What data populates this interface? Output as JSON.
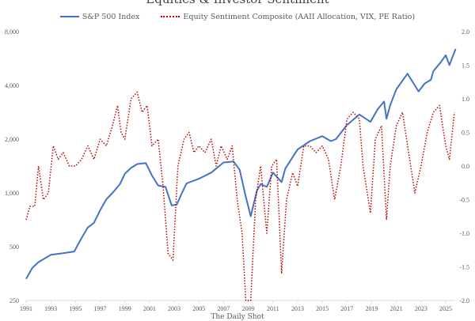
{
  "chart_data": {
    "type": "line",
    "title": "Equities & Investor Sentiment",
    "source": "The Daily Shot",
    "left_axis": {
      "scale": "log",
      "ylim": [
        250,
        8000
      ],
      "ticks": [
        250,
        500,
        1000,
        2000,
        4000,
        8000
      ],
      "tick_labels": [
        "250",
        "500",
        "1,000",
        "2,000",
        "4,000",
        "8,000"
      ]
    },
    "right_axis": {
      "ylim": [
        -2.0,
        2.0
      ],
      "ticks": [
        -2.0,
        -1.5,
        -1.0,
        -0.5,
        0.0,
        0.5,
        1.0,
        1.5,
        2.0
      ],
      "tick_labels": [
        "-2.0",
        "-1.5",
        "-1.0",
        "-0.5",
        "0.0",
        "0.5",
        "1.0",
        "1.5",
        "2.0"
      ]
    },
    "x_axis": {
      "xlim": [
        1991,
        2025.9
      ],
      "ticks": [
        1991,
        1993,
        1995,
        1997,
        1999,
        2001,
        2003,
        2005,
        2007,
        2009,
        2011,
        2013,
        2015,
        2017,
        2019,
        2021,
        2023,
        2025
      ],
      "tick_labels": [
        "1991",
        "1993",
        "1995",
        "1997",
        "1999",
        "2001",
        "2003",
        "2005",
        "2007",
        "2009",
        "2011",
        "2013",
        "2015",
        "2017",
        "2019",
        "2021",
        "2023",
        "2025"
      ]
    },
    "legend_position": "top-center",
    "series": [
      {
        "name": "S&P 500 Index",
        "axis": "left",
        "color": "#4472C4",
        "style": "solid",
        "x": [
          1991,
          1991.5,
          1992,
          1993,
          1994,
          1994.9,
          1995.5,
          1996,
          1996.5,
          1997,
          1997.5,
          1998,
          1998.6,
          1999,
          1999.5,
          2000,
          2000.7,
          2001.2,
          2001.7,
          2002.3,
          2002.8,
          2003.2,
          2003.6,
          2004,
          2005,
          2006,
          2007,
          2007.8,
          2008.3,
          2008.8,
          2009.2,
          2009.7,
          2010,
          2010.5,
          2011,
          2011.7,
          2012,
          2013,
          2014,
          2015,
          2015.7,
          2016.1,
          2017,
          2018,
          2018.9,
          2019.5,
          2020,
          2020.2,
          2020.5,
          2021,
          2021.9,
          2022.4,
          2022.8,
          2023.3,
          2023.8,
          2024,
          2024.6,
          2025,
          2025.3,
          2025.8
        ],
        "values": [
          330,
          380,
          410,
          450,
          460,
          470,
          560,
          640,
          680,
          800,
          920,
          1000,
          1120,
          1280,
          1380,
          1450,
          1470,
          1250,
          1100,
          1080,
          850,
          860,
          990,
          1130,
          1200,
          1300,
          1480,
          1500,
          1350,
          950,
          740,
          1030,
          1120,
          1080,
          1300,
          1150,
          1370,
          1750,
          1950,
          2080,
          1950,
          2000,
          2400,
          2750,
          2500,
          2950,
          3250,
          2600,
          3100,
          3800,
          4650,
          4100,
          3700,
          4100,
          4300,
          4800,
          5400,
          5900,
          5200,
          6400
        ]
      },
      {
        "name": "Equity Sentiment Composite (AAII Allocation, VIX, PE Ratio)",
        "axis": "right",
        "color": "#C00000",
        "style": "dotted",
        "x": [
          1991,
          1991.3,
          1991.7,
          1992,
          1992.4,
          1992.8,
          1993.2,
          1993.6,
          1994,
          1994.5,
          1995,
          1995.5,
          1996,
          1996.5,
          1997,
          1997.5,
          1998,
          1998.4,
          1998.7,
          1999,
          1999.5,
          2000,
          2000.4,
          2000.8,
          2001.2,
          2001.7,
          2002.1,
          2002.5,
          2002.9,
          2003.3,
          2003.8,
          2004.2,
          2004.6,
          2005,
          2005.5,
          2006,
          2006.4,
          2006.8,
          2007.3,
          2007.7,
          2008.1,
          2008.5,
          2008.8,
          2009.2,
          2009.6,
          2010,
          2010.5,
          2010.9,
          2011.3,
          2011.7,
          2012.1,
          2012.6,
          2013,
          2013.5,
          2014,
          2014.5,
          2015,
          2015.5,
          2016,
          2016.5,
          2017,
          2017.5,
          2018,
          2018.3,
          2018.9,
          2019.3,
          2019.8,
          2020.2,
          2020.5,
          2021,
          2021.5,
          2022,
          2022.5,
          2023,
          2023.5,
          2024,
          2024.5,
          2025,
          2025.3,
          2025.7
        ],
        "values": [
          -0.8,
          -0.6,
          -0.6,
          0.0,
          -0.5,
          -0.4,
          0.3,
          0.1,
          0.2,
          0.0,
          0.0,
          0.1,
          0.3,
          0.1,
          0.4,
          0.3,
          0.6,
          0.9,
          0.5,
          0.4,
          1.0,
          1.1,
          0.8,
          0.9,
          0.3,
          0.4,
          -0.3,
          -1.3,
          -1.4,
          0.0,
          0.4,
          0.5,
          0.2,
          0.3,
          0.2,
          0.4,
          0.0,
          0.3,
          0.1,
          0.3,
          -0.5,
          -1.0,
          -2.0,
          -2.0,
          -0.5,
          0.0,
          -1.0,
          0.0,
          0.1,
          -1.6,
          -0.5,
          -0.1,
          -0.3,
          0.3,
          0.3,
          0.2,
          0.3,
          0.1,
          -0.5,
          0.0,
          0.7,
          0.8,
          0.7,
          0.0,
          -0.7,
          0.4,
          0.6,
          -0.8,
          0.0,
          0.6,
          0.8,
          0.2,
          -0.4,
          0.0,
          0.5,
          0.8,
          0.9,
          0.3,
          0.1,
          0.8
        ]
      }
    ]
  }
}
